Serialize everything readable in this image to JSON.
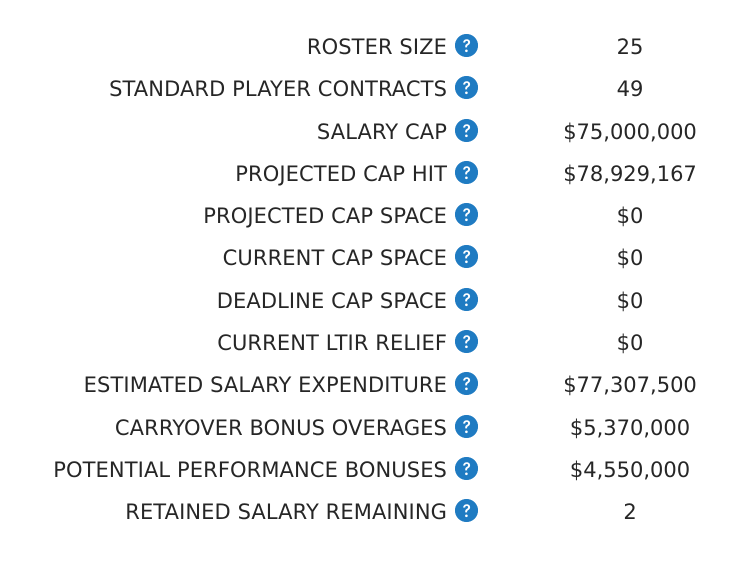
{
  "rows": [
    {
      "label": "ROSTER SIZE",
      "value": "25"
    },
    {
      "label": "STANDARD PLAYER CONTRACTS",
      "value": "49"
    },
    {
      "label": "SALARY CAP",
      "value": "$75,000,000"
    },
    {
      "label": "PROJECTED CAP HIT",
      "value": "$78,929,167"
    },
    {
      "label": "PROJECTED CAP SPACE",
      "value": "$0"
    },
    {
      "label": "CURRENT CAP SPACE",
      "value": "$0"
    },
    {
      "label": "DEADLINE CAP SPACE",
      "value": "$0"
    },
    {
      "label": "CURRENT LTIR RELIEF",
      "value": "$0"
    },
    {
      "label": "ESTIMATED SALARY EXPENDITURE",
      "value": "$77,307,500"
    },
    {
      "label": "CARRYOVER BONUS OVERAGES",
      "value": "$5,370,000"
    },
    {
      "label": "POTENTIAL PERFORMANCE BONUSES",
      "value": "$4,550,000"
    },
    {
      "label": "RETAINED SALARY REMAINING",
      "value": "2"
    }
  ],
  "help_icon": "question-circle-icon",
  "colors": {
    "help_icon_bg": "#1f7bc2",
    "text": "#262626"
  }
}
